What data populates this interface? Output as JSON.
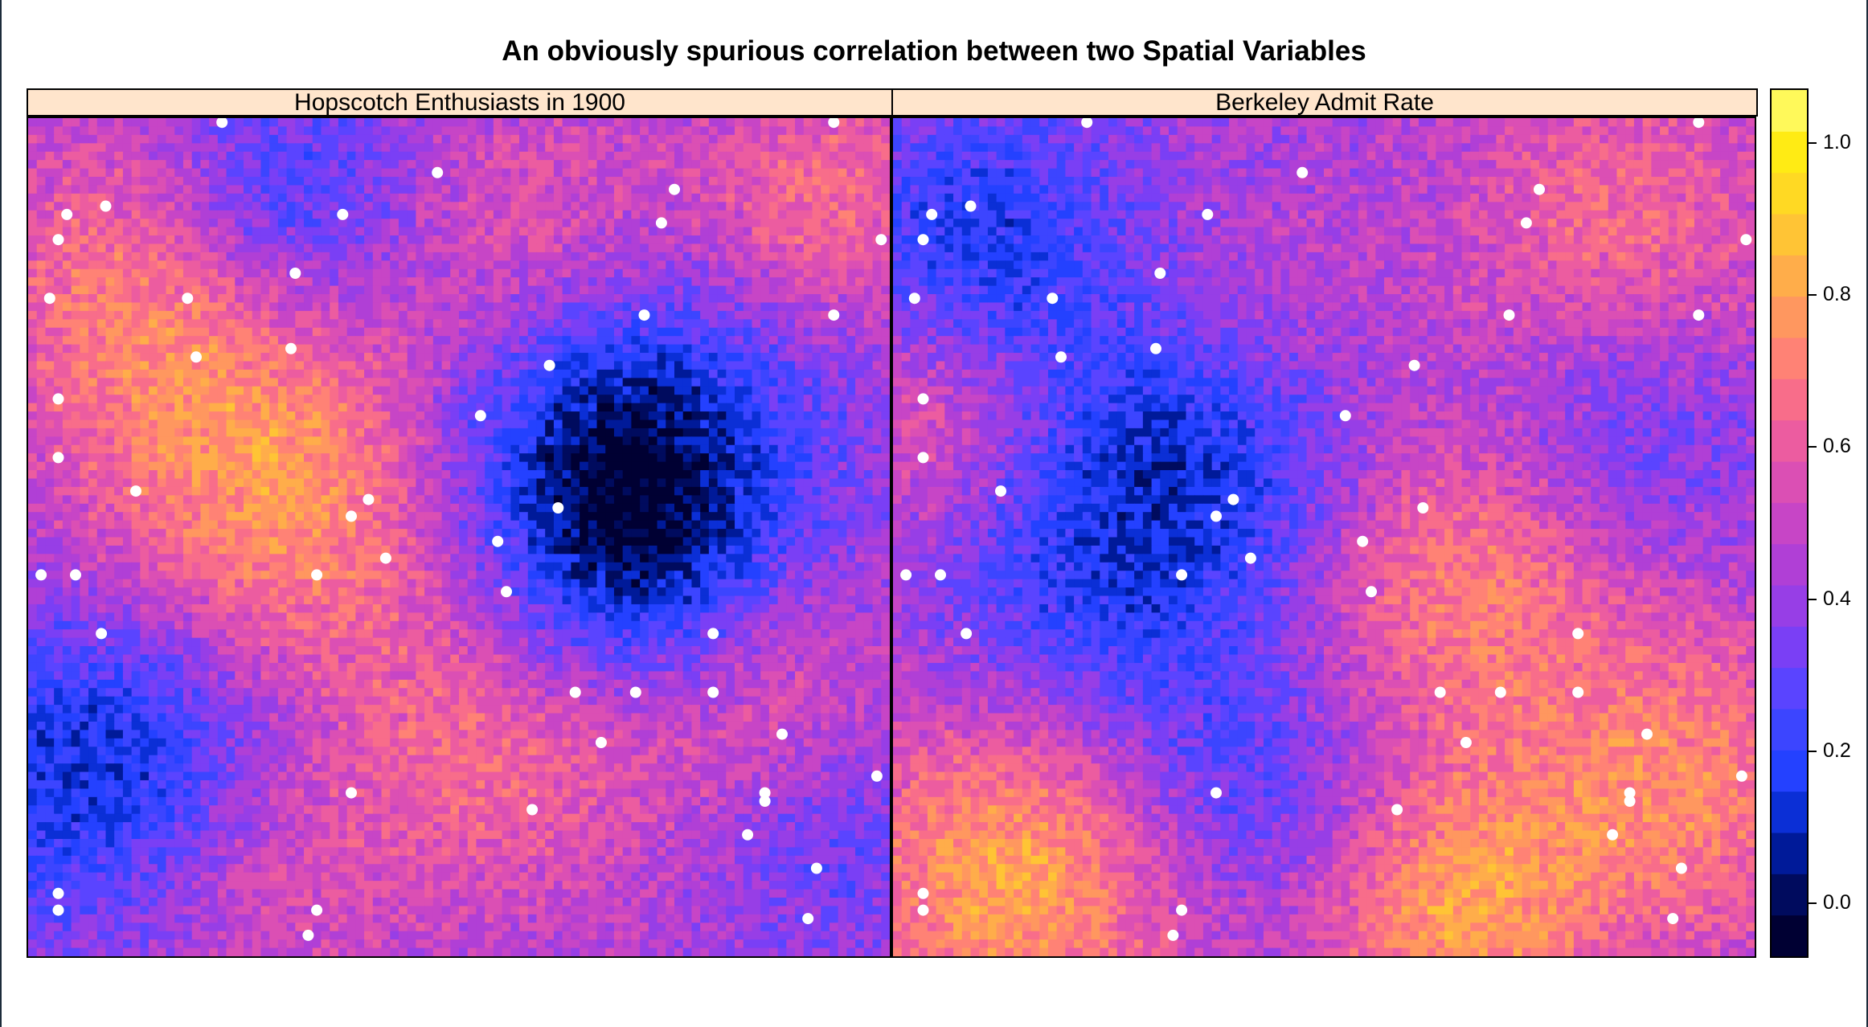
{
  "chart_data": {
    "type": "heatmap",
    "title": "An obviously spurious correlation between two Spatial Variables",
    "panels": [
      {
        "name": "Hopscotch Enthusiasts in 1900",
        "seed": 11,
        "field": "left"
      },
      {
        "name": "Berkeley Admit Rate",
        "seed": 29,
        "field": "right"
      }
    ],
    "grid": {
      "cols": 100,
      "rows": 100
    },
    "x_range": [
      0,
      1
    ],
    "y_range": [
      0,
      1
    ],
    "color_scale": {
      "zlim": [
        -0.07,
        1.07
      ],
      "ticks": [
        "0.0",
        "0.2",
        "0.4",
        "0.6",
        "0.8",
        "1.0"
      ],
      "tick_values": [
        0.0,
        0.2,
        0.4,
        0.6,
        0.8,
        1.0
      ],
      "colors": [
        "#000033",
        "#000b5e",
        "#001a99",
        "#0b2fd6",
        "#2441ff",
        "#3c45ff",
        "#5a44ff",
        "#7a3ff5",
        "#973ee6",
        "#b03fd6",
        "#c745c6",
        "#db4fb4",
        "#ec5ca0",
        "#f86d8a",
        "#ff8275",
        "#ff975f",
        "#ffad4a",
        "#ffc435",
        "#ffd923",
        "#ffeb14",
        "#fff95a"
      ]
    },
    "points": [
      [
        0.225,
        0.995
      ],
      [
        0.475,
        0.935
      ],
      [
        0.75,
        0.915
      ],
      [
        0.935,
        0.995
      ],
      [
        0.09,
        0.895
      ],
      [
        0.045,
        0.885
      ],
      [
        0.035,
        0.855
      ],
      [
        0.365,
        0.885
      ],
      [
        0.735,
        0.875
      ],
      [
        0.99,
        0.855
      ],
      [
        0.31,
        0.815
      ],
      [
        0.025,
        0.785
      ],
      [
        0.185,
        0.785
      ],
      [
        0.715,
        0.765
      ],
      [
        0.935,
        0.765
      ],
      [
        0.305,
        0.725
      ],
      [
        0.195,
        0.715
      ],
      [
        0.605,
        0.705
      ],
      [
        0.035,
        0.665
      ],
      [
        0.525,
        0.645
      ],
      [
        0.035,
        0.595
      ],
      [
        0.125,
        0.555
      ],
      [
        0.395,
        0.545
      ],
      [
        0.375,
        0.525
      ],
      [
        0.615,
        0.535
      ],
      [
        0.545,
        0.495
      ],
      [
        0.415,
        0.475
      ],
      [
        0.335,
        0.455
      ],
      [
        0.015,
        0.455
      ],
      [
        0.055,
        0.455
      ],
      [
        0.555,
        0.435
      ],
      [
        0.085,
        0.385
      ],
      [
        0.795,
        0.385
      ],
      [
        0.635,
        0.315
      ],
      [
        0.705,
        0.315
      ],
      [
        0.795,
        0.315
      ],
      [
        0.875,
        0.265
      ],
      [
        0.665,
        0.255
      ],
      [
        0.985,
        0.215
      ],
      [
        0.375,
        0.195
      ],
      [
        0.855,
        0.195
      ],
      [
        0.855,
        0.185
      ],
      [
        0.585,
        0.175
      ],
      [
        0.835,
        0.145
      ],
      [
        0.915,
        0.105
      ],
      [
        0.035,
        0.075
      ],
      [
        0.035,
        0.055
      ],
      [
        0.335,
        0.055
      ],
      [
        0.905,
        0.045
      ],
      [
        0.325,
        0.025
      ]
    ]
  }
}
